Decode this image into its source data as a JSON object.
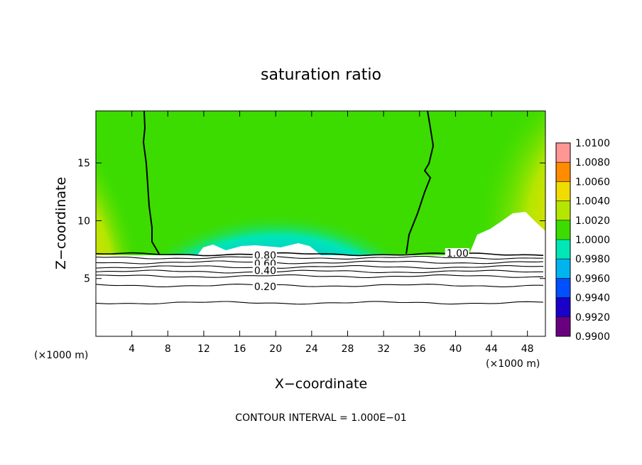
{
  "chart_data": {
    "type": "heatmap",
    "title": "saturation ratio",
    "xlabel": "X−coordinate",
    "ylabel": "Z−coordinate",
    "x_unit_left": "(×1000 m)",
    "x_unit_right": "(×1000 m)",
    "footer": "CONTOUR INTERVAL = 1.000E−01",
    "xlim": [
      0,
      50
    ],
    "ylim": [
      0,
      19.5
    ],
    "x_ticks": [
      4,
      8,
      12,
      16,
      20,
      24,
      28,
      32,
      36,
      40,
      44,
      48
    ],
    "y_ticks": [
      5,
      10,
      15
    ],
    "colorbar": {
      "levels": [
        "0.9900",
        "0.9920",
        "0.9940",
        "0.9960",
        "0.9980",
        "1.0000",
        "1.0020",
        "1.0040",
        "1.0060",
        "1.0080",
        "1.0100"
      ],
      "colors": [
        "#6a0080",
        "#1a00c8",
        "#0050ff",
        "#00b4f0",
        "#00e6b4",
        "#3cdc00",
        "#b4e600",
        "#f0dc00",
        "#ff8c00",
        "#ff1e1e",
        "#ff9696"
      ]
    },
    "contour_labels": [
      {
        "text": "0.80",
        "x": 17.6,
        "z": 7.0
      },
      {
        "text": "0.60",
        "x": 17.6,
        "z": 6.3
      },
      {
        "text": "0.40",
        "x": 17.6,
        "z": 5.7
      },
      {
        "text": "0.20",
        "x": 17.6,
        "z": 4.3
      },
      {
        "text": "1.00",
        "x": 39.0,
        "z": 7.2
      }
    ],
    "lower_contours_z": [
      7.1,
      6.8,
      6.4,
      6.0,
      5.6,
      5.2,
      4.4,
      2.9
    ],
    "cloud_boundary": {
      "level": "1.00",
      "left_x": [
        5.2,
        7.0
      ],
      "right_x": [
        37.0,
        34.5
      ]
    }
  }
}
